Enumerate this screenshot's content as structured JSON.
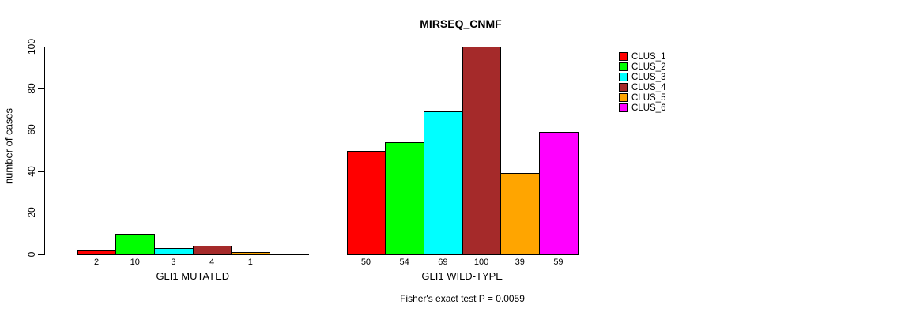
{
  "chart_data": {
    "type": "bar",
    "title": "MIRSEQ_CNMF",
    "ylabel": "number of cases",
    "xlabel": "",
    "ylim": [
      0,
      100
    ],
    "yticks": [
      0,
      20,
      40,
      60,
      80,
      100
    ],
    "grid": false,
    "legend_position": "top-right",
    "categories": [
      "GLI1 MUTATED",
      "GLI1 WILD-TYPE"
    ],
    "series": [
      {
        "name": "CLUS_1",
        "color": "#FF0000",
        "values": [
          2,
          50
        ]
      },
      {
        "name": "CLUS_2",
        "color": "#00FF00",
        "values": [
          10,
          54
        ]
      },
      {
        "name": "CLUS_3",
        "color": "#00FFFF",
        "values": [
          3,
          69
        ]
      },
      {
        "name": "CLUS_4",
        "color": "#A52A2A",
        "values": [
          4,
          100
        ]
      },
      {
        "name": "CLUS_5",
        "color": "#FFA500",
        "values": [
          1,
          39
        ]
      },
      {
        "name": "CLUS_6",
        "color": "#FF00FF",
        "values": [
          0,
          59
        ]
      }
    ],
    "bar_value_labels": [
      [
        "2",
        "10",
        "3",
        "4",
        "1",
        ""
      ],
      [
        "50",
        "54",
        "69",
        "100",
        "39",
        "59"
      ]
    ],
    "annotation": "Fisher's exact test P = 0.0059"
  }
}
